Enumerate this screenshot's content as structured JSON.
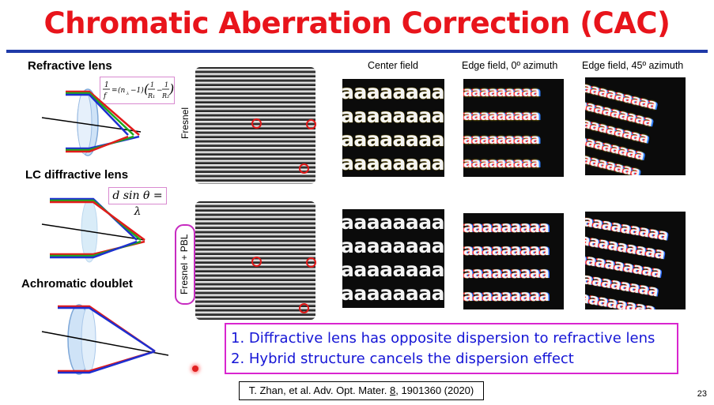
{
  "title": "Chromatic Aberration Correction (CAC)",
  "lenses": {
    "refractive": {
      "label": "Refractive lens",
      "formula": "1/f = (n_λ − 1)(1/R₁ − 1/R₂)"
    },
    "lc_diffractive": {
      "label": "LC diffractive lens",
      "formula": "d sin θ = λ"
    },
    "achromatic": {
      "label": "Achromatic doublet"
    }
  },
  "rows": {
    "fresnel": "Fresnel",
    "fresnel_pbl": "Fresnel + PBL"
  },
  "columns": {
    "center": "Center field",
    "edge0": "Edge field, 0º azimuth",
    "edge45": "Edge field, 45º azimuth"
  },
  "sample_text": "aaaaaaaaa",
  "bullets": [
    "1.  Diffractive lens has opposite dispersion to refractive lens",
    "2.  Hybrid structure cancels the dispersion effect"
  ],
  "reference": {
    "prefix": "T. Zhan, et al. Adv. Opt. Mater. ",
    "volume": "8",
    "suffix": ", 1901360 (2020)"
  },
  "page_number": "23",
  "colors": {
    "title": "#e8141b",
    "rule": "#1f3aa8",
    "bullets": "#1515d6",
    "box_border": "#d925cf",
    "marker": "#e01818"
  }
}
